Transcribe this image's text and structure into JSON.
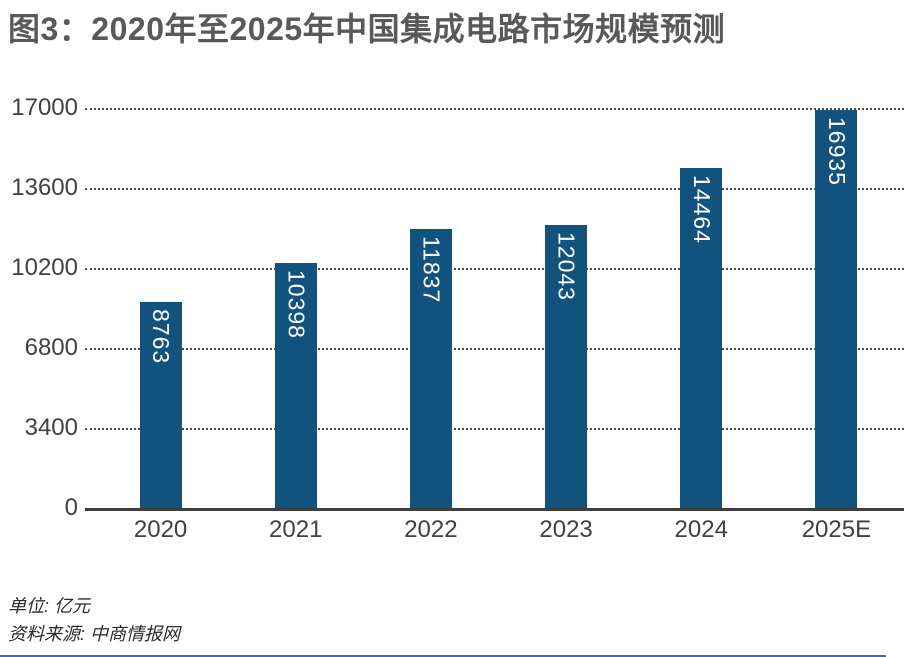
{
  "title": "图3：2020年至2025年中国集成电路市场规模预测",
  "notes": {
    "unit": "单位: 亿元",
    "source": "资料来源: 中商情报网"
  },
  "colors": {
    "bar": "#11527F",
    "title_text": "#58595B",
    "axis_text": "#414042",
    "gridline": "#4D4D4D",
    "baseline": "#3F3F3F",
    "bar_value_text": "#FFFFFF",
    "bottom_rule": "#2E74B5"
  },
  "chart_data": {
    "type": "bar",
    "title": "图3：2020年至2025年中国集成电路市场规模预测",
    "categories": [
      "2020",
      "2021",
      "2022",
      "2023",
      "2024",
      "2025E"
    ],
    "values": [
      8763,
      10398,
      11837,
      12043,
      14464,
      16935
    ],
    "xlabel": "",
    "ylabel": "",
    "unit": "亿元",
    "ylim": [
      0,
      17000
    ],
    "yticks": [
      0,
      3400,
      6800,
      10200,
      13600,
      17000
    ],
    "grid": "horizontal-dotted",
    "legend": "none",
    "value_label_style": "white, rotated 90° clockwise, inside top of bar"
  }
}
